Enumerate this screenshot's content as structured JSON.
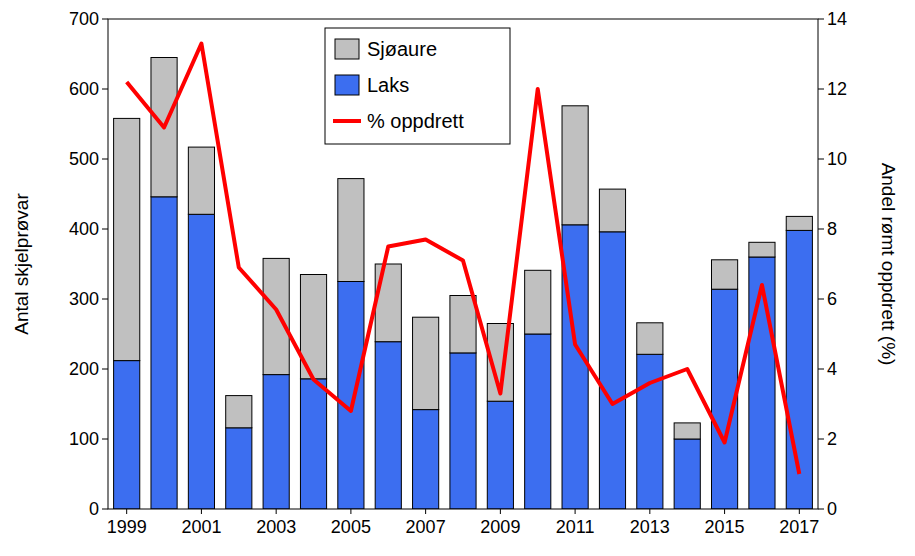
{
  "chart_data": {
    "type": "bar",
    "stacked": true,
    "legend": "upper center",
    "grid": false,
    "y_label": "Antal skjelprøvar",
    "y2_label": "Andel rømt oppdrett (%)",
    "categories": [
      "1999",
      null,
      "2001",
      null,
      "2003",
      null,
      "2005",
      null,
      "2007",
      null,
      "2009",
      null,
      "2011",
      null,
      "2013",
      null,
      "2015",
      null,
      "2017"
    ],
    "series": [
      {
        "name": "Laks",
        "color": "#3c6ef0",
        "type": "bar",
        "values": [
          212,
          446,
          421,
          116,
          192,
          186,
          325,
          239,
          142,
          223,
          154,
          250,
          406,
          396,
          221,
          100,
          314,
          360,
          398
        ]
      },
      {
        "name": "Sjøaure",
        "color": "#c0c0c0",
        "type": "bar",
        "values": [
          346,
          199,
          96,
          46,
          166,
          149,
          147,
          111,
          132,
          82,
          111,
          91,
          170,
          61,
          45,
          23,
          42,
          21,
          20
        ]
      },
      {
        "name": "% oppdrett",
        "color": "#ff0000",
        "type": "line",
        "axis": "y2",
        "values": [
          12.2,
          10.9,
          13.3,
          6.9,
          5.7,
          3.7,
          2.8,
          7.5,
          7.7,
          7.1,
          3.3,
          12.0,
          4.7,
          3.0,
          3.6,
          4.0,
          1.9,
          6.4,
          1.0
        ]
      }
    ],
    "ylim": [
      0,
      700
    ],
    "yticks": [
      0,
      100,
      200,
      300,
      400,
      500,
      600,
      700
    ],
    "y2lim": [
      0,
      14
    ],
    "y2ticks": [
      0,
      2,
      4,
      6,
      8,
      10,
      12,
      14
    ]
  }
}
